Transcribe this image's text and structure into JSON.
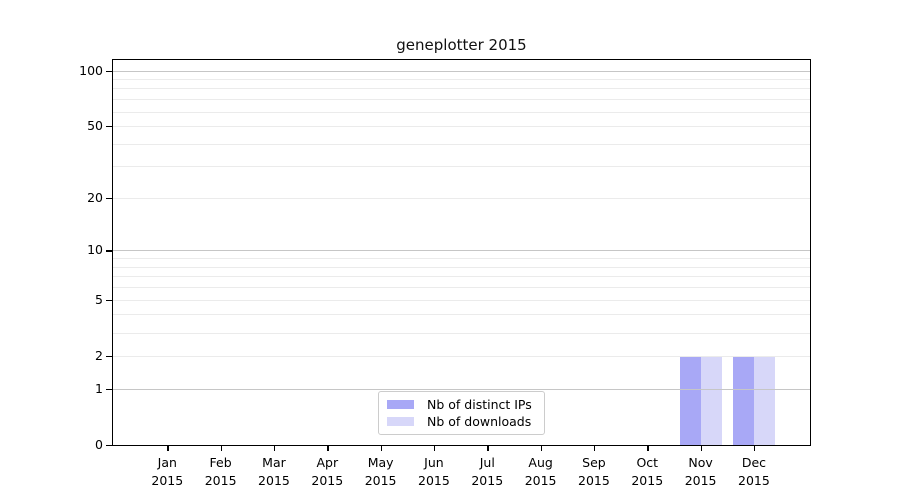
{
  "chart_data": {
    "type": "bar",
    "title": "geneplotter 2015",
    "categories": [
      "Jan",
      "Feb",
      "Mar",
      "Apr",
      "May",
      "Jun",
      "Jul",
      "Aug",
      "Sep",
      "Oct",
      "Nov",
      "Dec"
    ],
    "x_year": "2015",
    "series": [
      {
        "name": "Nb of distinct IPs",
        "color": "#a8a8f6",
        "values": [
          0,
          0,
          0,
          0,
          0,
          0,
          0,
          0,
          0,
          0,
          2,
          2
        ]
      },
      {
        "name": "Nb of downloads",
        "color": "#d7d7f9",
        "values": [
          0,
          0,
          0,
          0,
          0,
          0,
          0,
          0,
          0,
          0,
          2,
          2
        ]
      }
    ],
    "xlabel": "",
    "ylabel": "",
    "yscale": "log1p",
    "ylim": [
      0,
      115
    ],
    "yticks": [
      0,
      1,
      2,
      5,
      10,
      20,
      50,
      100
    ],
    "major_gridlines": [
      1,
      10,
      100
    ],
    "minor_gridlines": [
      2,
      3,
      4,
      5,
      6,
      7,
      8,
      9,
      20,
      30,
      40,
      50,
      60,
      70,
      80,
      90
    ],
    "grid": true,
    "legend_position": "lower center",
    "style": {
      "major_grid_color": "#c6c6c6",
      "minor_grid_color": "#ebebeb",
      "spine_color": "#000000",
      "background": "#ffffff"
    }
  }
}
